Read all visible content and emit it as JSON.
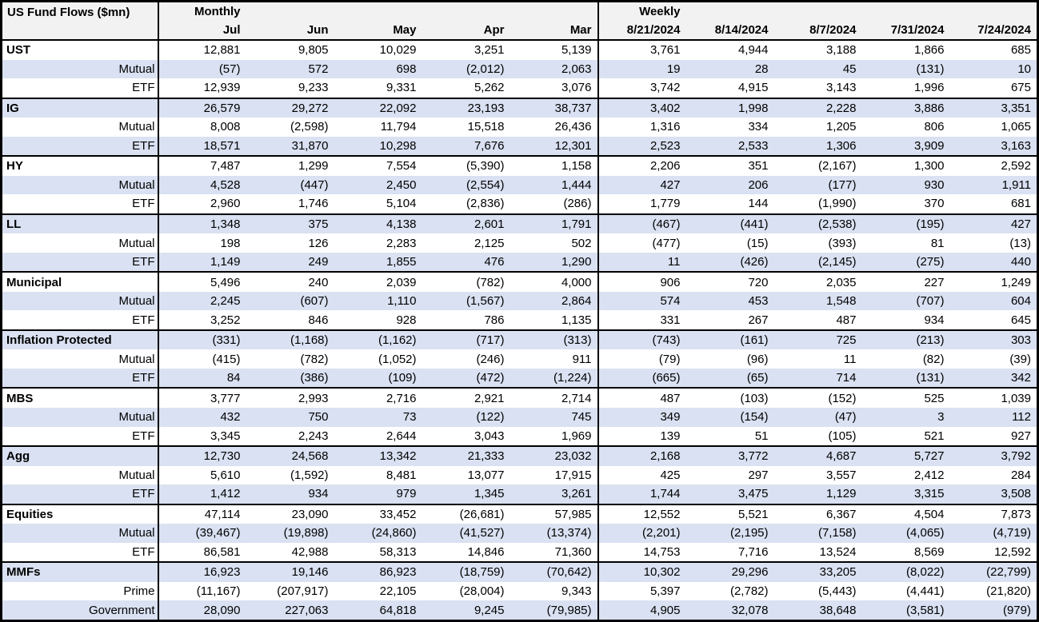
{
  "title": "US Fund Flows ($mn)",
  "colors": {
    "header_bg": "#f2f2f2",
    "shaded_row": "#d9e1f2",
    "border": "#000000",
    "text": "#000000",
    "row_bg": "#ffffff"
  },
  "chart_data": {
    "type": "table",
    "title": "US Fund Flows ($mn)",
    "column_groups": [
      {
        "label": "Monthly",
        "columns": [
          "Jul",
          "Jun",
          "May",
          "Apr",
          "Mar"
        ]
      },
      {
        "label": "Weekly",
        "columns": [
          "8/21/2024",
          "8/14/2024",
          "8/7/2024",
          "7/31/2024",
          "7/24/2024"
        ]
      }
    ],
    "groups": [
      {
        "label": "UST",
        "values": [
          "12,881",
          "9,805",
          "10,029",
          "3,251",
          "5,139",
          "3,761",
          "4,944",
          "3,188",
          "1,866",
          "685"
        ],
        "sub_rows": [
          {
            "label": "Mutual",
            "values": [
              "(57)",
              "572",
              "698",
              "(2,012)",
              "2,063",
              "19",
              "28",
              "45",
              "(131)",
              "10"
            ]
          },
          {
            "label": "ETF",
            "values": [
              "12,939",
              "9,233",
              "9,331",
              "5,262",
              "3,076",
              "3,742",
              "4,915",
              "3,143",
              "1,996",
              "675"
            ]
          }
        ]
      },
      {
        "label": "IG",
        "values": [
          "26,579",
          "29,272",
          "22,092",
          "23,193",
          "38,737",
          "3,402",
          "1,998",
          "2,228",
          "3,886",
          "3,351"
        ],
        "sub_rows": [
          {
            "label": "Mutual",
            "values": [
              "8,008",
              "(2,598)",
              "11,794",
              "15,518",
              "26,436",
              "1,316",
              "334",
              "1,205",
              "806",
              "1,065"
            ]
          },
          {
            "label": "ETF",
            "values": [
              "18,571",
              "31,870",
              "10,298",
              "7,676",
              "12,301",
              "2,523",
              "2,533",
              "1,306",
              "3,909",
              "3,163"
            ]
          }
        ]
      },
      {
        "label": "HY",
        "values": [
          "7,487",
          "1,299",
          "7,554",
          "(5,390)",
          "1,158",
          "2,206",
          "351",
          "(2,167)",
          "1,300",
          "2,592"
        ],
        "sub_rows": [
          {
            "label": "Mutual",
            "values": [
              "4,528",
              "(447)",
              "2,450",
              "(2,554)",
              "1,444",
              "427",
              "206",
              "(177)",
              "930",
              "1,911"
            ]
          },
          {
            "label": "ETF",
            "values": [
              "2,960",
              "1,746",
              "5,104",
              "(2,836)",
              "(286)",
              "1,779",
              "144",
              "(1,990)",
              "370",
              "681"
            ]
          }
        ]
      },
      {
        "label": "LL",
        "values": [
          "1,348",
          "375",
          "4,138",
          "2,601",
          "1,791",
          "(467)",
          "(441)",
          "(2,538)",
          "(195)",
          "427"
        ],
        "sub_rows": [
          {
            "label": "Mutual",
            "values": [
              "198",
              "126",
              "2,283",
              "2,125",
              "502",
              "(477)",
              "(15)",
              "(393)",
              "81",
              "(13)"
            ]
          },
          {
            "label": "ETF",
            "values": [
              "1,149",
              "249",
              "1,855",
              "476",
              "1,290",
              "11",
              "(426)",
              "(2,145)",
              "(275)",
              "440"
            ]
          }
        ]
      },
      {
        "label": "Municipal",
        "values": [
          "5,496",
          "240",
          "2,039",
          "(782)",
          "4,000",
          "906",
          "720",
          "2,035",
          "227",
          "1,249"
        ],
        "sub_rows": [
          {
            "label": "Mutual",
            "values": [
              "2,245",
              "(607)",
              "1,110",
              "(1,567)",
              "2,864",
              "574",
              "453",
              "1,548",
              "(707)",
              "604"
            ]
          },
          {
            "label": "ETF",
            "values": [
              "3,252",
              "846",
              "928",
              "786",
              "1,135",
              "331",
              "267",
              "487",
              "934",
              "645"
            ]
          }
        ]
      },
      {
        "label": "Inflation Protected",
        "values": [
          "(331)",
          "(1,168)",
          "(1,162)",
          "(717)",
          "(313)",
          "(743)",
          "(161)",
          "725",
          "(213)",
          "303"
        ],
        "sub_rows": [
          {
            "label": "Mutual",
            "values": [
              "(415)",
              "(782)",
              "(1,052)",
              "(246)",
              "911",
              "(79)",
              "(96)",
              "11",
              "(82)",
              "(39)"
            ]
          },
          {
            "label": "ETF",
            "values": [
              "84",
              "(386)",
              "(109)",
              "(472)",
              "(1,224)",
              "(665)",
              "(65)",
              "714",
              "(131)",
              "342"
            ]
          }
        ]
      },
      {
        "label": "MBS",
        "values": [
          "3,777",
          "2,993",
          "2,716",
          "2,921",
          "2,714",
          "487",
          "(103)",
          "(152)",
          "525",
          "1,039"
        ],
        "sub_rows": [
          {
            "label": "Mutual",
            "values": [
              "432",
              "750",
              "73",
              "(122)",
              "745",
              "349",
              "(154)",
              "(47)",
              "3",
              "112"
            ]
          },
          {
            "label": "ETF",
            "values": [
              "3,345",
              "2,243",
              "2,644",
              "3,043",
              "1,969",
              "139",
              "51",
              "(105)",
              "521",
              "927"
            ]
          }
        ]
      },
      {
        "label": "Agg",
        "values": [
          "12,730",
          "24,568",
          "13,342",
          "21,333",
          "23,032",
          "2,168",
          "3,772",
          "4,687",
          "5,727",
          "3,792"
        ],
        "sub_rows": [
          {
            "label": "Mutual",
            "values": [
              "5,610",
              "(1,592)",
              "8,481",
              "13,077",
              "17,915",
              "425",
              "297",
              "3,557",
              "2,412",
              "284"
            ]
          },
          {
            "label": "ETF",
            "values": [
              "1,412",
              "934",
              "979",
              "1,345",
              "3,261",
              "1,744",
              "3,475",
              "1,129",
              "3,315",
              "3,508"
            ]
          }
        ]
      },
      {
        "label": "Equities",
        "values": [
          "47,114",
          "23,090",
          "33,452",
          "(26,681)",
          "57,985",
          "12,552",
          "5,521",
          "6,367",
          "4,504",
          "7,873"
        ],
        "sub_rows": [
          {
            "label": "Mutual",
            "values": [
              "(39,467)",
              "(19,898)",
              "(24,860)",
              "(41,527)",
              "(13,374)",
              "(2,201)",
              "(2,195)",
              "(7,158)",
              "(4,065)",
              "(4,719)"
            ]
          },
          {
            "label": "ETF",
            "values": [
              "86,581",
              "42,988",
              "58,313",
              "14,846",
              "71,360",
              "14,753",
              "7,716",
              "13,524",
              "8,569",
              "12,592"
            ]
          }
        ]
      },
      {
        "label": "MMFs",
        "values": [
          "16,923",
          "19,146",
          "86,923",
          "(18,759)",
          "(70,642)",
          "10,302",
          "29,296",
          "33,205",
          "(8,022)",
          "(22,799)"
        ],
        "sub_rows": [
          {
            "label": "Prime",
            "values": [
              "(11,167)",
              "(207,917)",
              "22,105",
              "(28,004)",
              "9,343",
              "5,397",
              "(2,782)",
              "(5,443)",
              "(4,441)",
              "(21,820)"
            ]
          },
          {
            "label": "Government",
            "values": [
              "28,090",
              "227,063",
              "64,818",
              "9,245",
              "(79,985)",
              "4,905",
              "32,078",
              "38,648",
              "(3,581)",
              "(979)"
            ]
          }
        ]
      }
    ]
  }
}
